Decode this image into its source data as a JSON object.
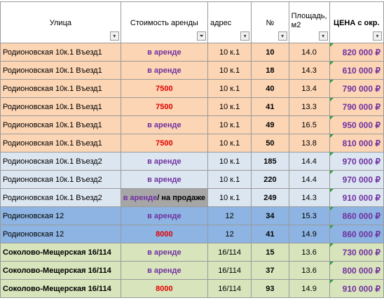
{
  "header": {
    "street": "Улица",
    "rent": "Стоимость аренды",
    "address": "адрес",
    "number": "№",
    "area": "Площадь, м2",
    "price": "ЦЕНА с окр."
  },
  "colors": {
    "peach": "#fcd5b4",
    "light_blue": "#dce6f1",
    "mid_blue": "#8db4e2",
    "light_green": "#d8e4bc",
    "gray": "#a6a6a6",
    "rent_text": "#7030a0",
    "price_text": "#e00000"
  },
  "rows": [
    {
      "street": "Родионовская 10к.1 Въезд1",
      "status": "в аренде",
      "address": "10 к.1",
      "number": "10",
      "area": "14.0",
      "price": "820 000 ₽"
    },
    {
      "street": "Родионовская 10к.1 Въезд1",
      "status": "в аренде",
      "address": "10 к.1",
      "number": "18",
      "area": "14.3",
      "price": "610 000 ₽"
    },
    {
      "street": "Родионовская 10к.1 Въезд1",
      "status": "7500",
      "address": "10 к.1",
      "number": "40",
      "area": "13.4",
      "price": "790 000 ₽"
    },
    {
      "street": "Родионовская 10к.1 Въезд1",
      "status": "7500",
      "address": "10 к.1",
      "number": "41",
      "area": "13.3",
      "price": "790 000 ₽"
    },
    {
      "street": "Родионовская 10к.1 Въезд1",
      "status": "в аренде",
      "address": "10 к.1",
      "number": "49",
      "area": "16.5",
      "price": "950 000 ₽"
    },
    {
      "street": "Родионовская 10к.1 Въезд1",
      "status": "7500",
      "address": "10 к.1",
      "number": "50",
      "area": "13.8",
      "price": "810 000 ₽"
    },
    {
      "street": "Родионовская 10к.1 Въезд2",
      "status": "в аренде",
      "address": "10 к.1",
      "number": "185",
      "area": "14.4",
      "price": "970 000 ₽"
    },
    {
      "street": "Родионовская 10к.1 Въезд2",
      "status": "в аренде",
      "address": "10 к.1",
      "number": "220",
      "area": "14.4",
      "price": "970 000 ₽"
    },
    {
      "street": "Родионовская 10к.1 Въезд2",
      "status_a": "в аренде",
      "status_b": "/ на продаже",
      "address": "10 к.1",
      "number": "249",
      "area": "14.3",
      "price": "910 000 ₽"
    },
    {
      "street": "Родионовская 12",
      "status": "в аренде",
      "address": "12",
      "number": "34",
      "area": "15.3",
      "price": "860 000 ₽"
    },
    {
      "street": "Родионовская 12",
      "status": "8000",
      "address": "12",
      "number": "41",
      "area": "14.9",
      "price": "860 000 ₽"
    },
    {
      "street": "Соколово-Мещерская 16/114",
      "status": "в аренде",
      "address": "16/114",
      "number": "15",
      "area": "13.6",
      "price": "730 000 ₽"
    },
    {
      "street": "Соколово-Мещерская 16/114",
      "status": "в аренде",
      "address": "16/114",
      "number": "37",
      "area": "13.6",
      "price": "800 000 ₽"
    },
    {
      "street": "Соколово-Мещерская 16/114",
      "status": "8000",
      "address": "16/114",
      "number": "93",
      "area": "14.9",
      "price": "910 000 ₽"
    }
  ]
}
